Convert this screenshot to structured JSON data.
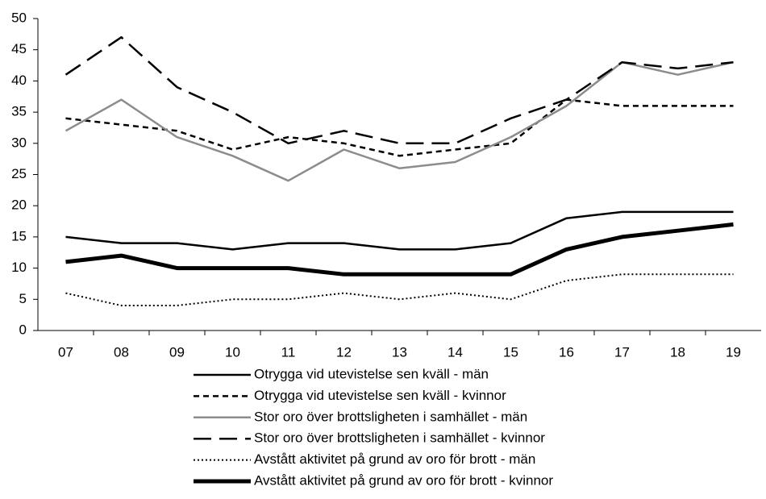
{
  "chart_data": {
    "type": "line",
    "categories": [
      "07",
      "08",
      "09",
      "10",
      "11",
      "12",
      "13",
      "14",
      "15",
      "16",
      "17",
      "18",
      "19"
    ],
    "ylim": [
      0,
      50
    ],
    "yticks": [
      0,
      5,
      10,
      15,
      20,
      25,
      30,
      35,
      40,
      45,
      50
    ],
    "grid": false,
    "legend": "bottom",
    "series": [
      {
        "name": "Otrygga vid utevistelse sen kväll - män",
        "color": "#000000",
        "width": 2.5,
        "dash": "none",
        "values": [
          15,
          14,
          14,
          13,
          14,
          14,
          13,
          13,
          14,
          18,
          19,
          19,
          19
        ]
      },
      {
        "name": "Otrygga vid utevistelse sen kväll - kvinnor",
        "color": "#000000",
        "width": 2.5,
        "dash": "7 5",
        "values": [
          34,
          33,
          32,
          29,
          31,
          30,
          28,
          29,
          30,
          37,
          36,
          36,
          36
        ]
      },
      {
        "name": "Stor oro över brottsligheten i samhället - män",
        "color": "#8c8c8c",
        "width": 2.5,
        "dash": "none",
        "values": [
          32,
          37,
          31,
          28,
          24,
          29,
          26,
          27,
          31,
          36,
          43,
          41,
          43
        ]
      },
      {
        "name": "Stor oro över brottsligheten i samhället - kvinnor",
        "color": "#000000",
        "width": 2.5,
        "dash": "22 10",
        "values": [
          41,
          47,
          39,
          35,
          30,
          32,
          30,
          30,
          34,
          37,
          43,
          42,
          43
        ]
      },
      {
        "name": "Avstått aktivitet på grund av oro för brott - män",
        "color": "#000000",
        "width": 2,
        "dash": "2 3",
        "values": [
          6,
          4,
          4,
          5,
          5,
          6,
          5,
          6,
          5,
          8,
          9,
          9,
          9
        ]
      },
      {
        "name": "Avstått aktivitet på grund av oro för brott - kvinnor",
        "color": "#000000",
        "width": 5,
        "dash": "none",
        "values": [
          11,
          12,
          10,
          10,
          10,
          9,
          9,
          9,
          9,
          13,
          15,
          16,
          17
        ]
      }
    ]
  }
}
